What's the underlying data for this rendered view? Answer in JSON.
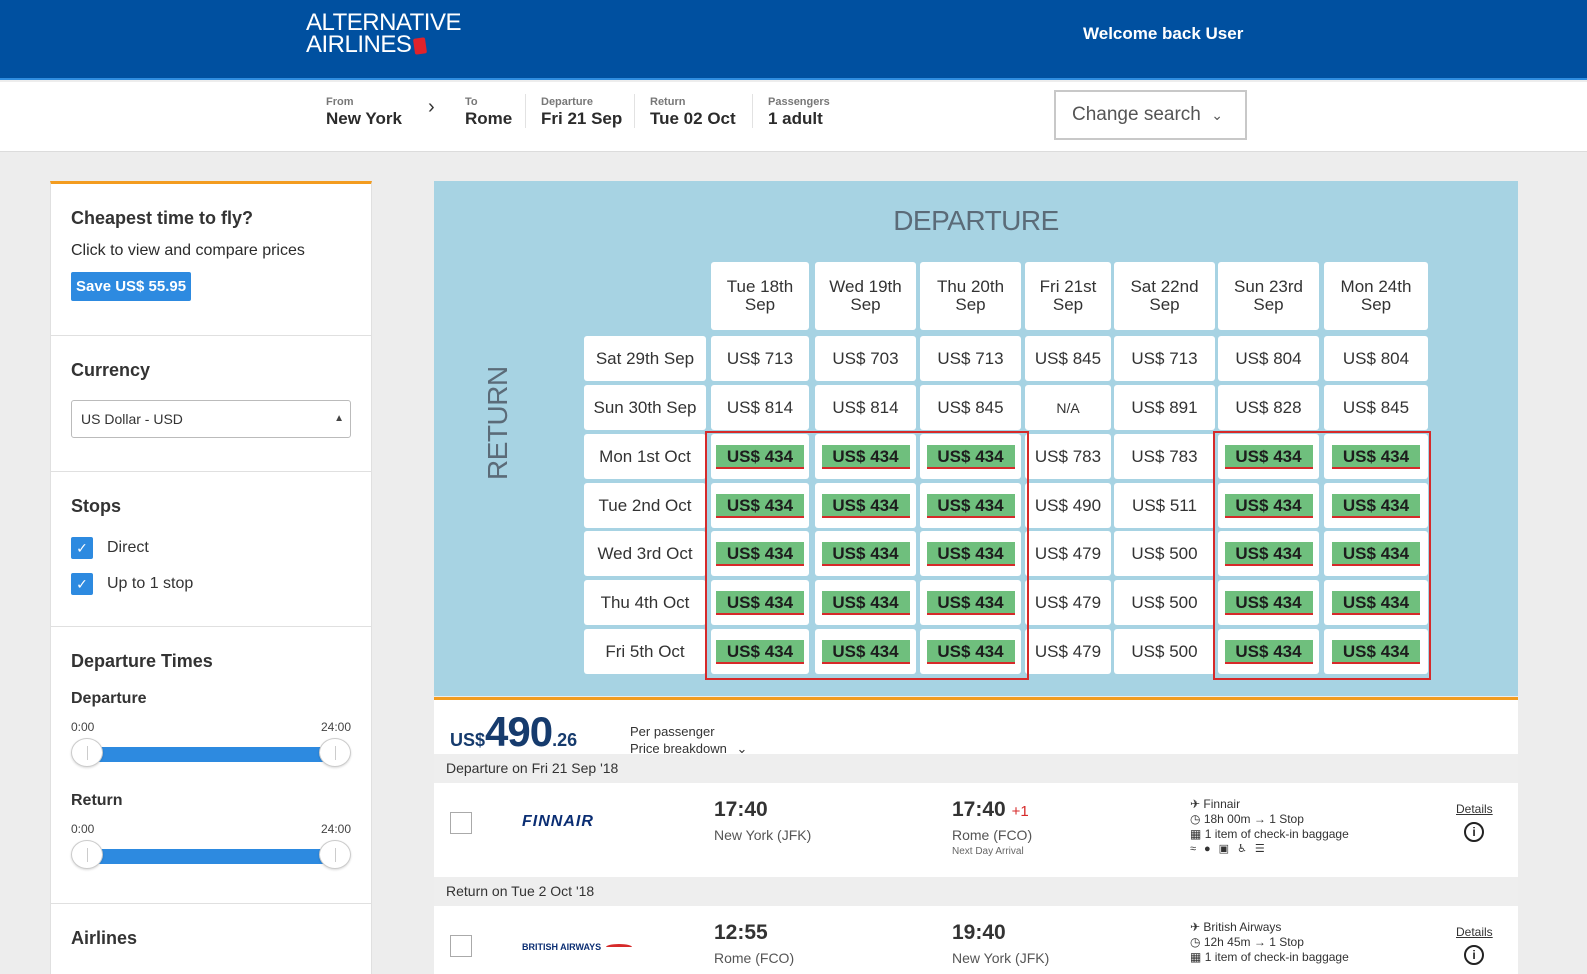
{
  "header": {
    "logo_line1": "ALTERNATIVE",
    "logo_line2": "AIRLINES",
    "welcome": "Welcome back User"
  },
  "search": {
    "from_label": "From",
    "from_value": "New York",
    "to_label": "To",
    "to_value": "Rome",
    "departure_label": "Departure",
    "departure_value": "Fri 21 Sep",
    "return_label": "Return",
    "return_value": "Tue 02 Oct",
    "passengers_label": "Passengers",
    "passengers_value": "1 adult",
    "change_label": "Change search"
  },
  "sidebar": {
    "cheapest_title": "Cheapest time to fly?",
    "cheapest_sub": "Click to view and compare prices",
    "save_label": "Save US$ 55.95",
    "currency_title": "Currency",
    "currency_value": "US Dollar - USD",
    "stops_title": "Stops",
    "stops": [
      {
        "label": "Direct",
        "checked": true
      },
      {
        "label": "Up to 1 stop",
        "checked": true
      }
    ],
    "times_title": "Departure Times",
    "departure_label": "Departure",
    "return_label": "Return",
    "range_min": "0:00",
    "range_max": "24:00",
    "airlines_title": "Airlines"
  },
  "matrix": {
    "title": "DEPARTURE",
    "return_label": "RETURN",
    "columns": [
      "Tue 18th Sep",
      "Wed 19th Sep",
      "Thu 20th Sep",
      "Fri 21st Sep",
      "Sat 22nd Sep",
      "Sun 23rd Sep",
      "Mon 24th Sep"
    ],
    "rows": [
      {
        "label": "Sat 29th Sep",
        "prices": [
          "US$ 713",
          "US$ 703",
          "US$ 713",
          "US$ 845",
          "US$ 713",
          "US$ 804",
          "US$ 804"
        ]
      },
      {
        "label": "Sun 30th Sep",
        "prices": [
          "US$ 814",
          "US$ 814",
          "US$ 845",
          "N/A",
          "US$ 891",
          "US$ 828",
          "US$ 845"
        ]
      },
      {
        "label": "Mon 1st Oct",
        "prices": [
          "US$ 434",
          "US$ 434",
          "US$ 434",
          "US$ 783",
          "US$ 783",
          "US$ 434",
          "US$ 434"
        ]
      },
      {
        "label": "Tue 2nd Oct",
        "prices": [
          "US$ 434",
          "US$ 434",
          "US$ 434",
          "US$ 490",
          "US$ 511",
          "US$ 434",
          "US$ 434"
        ]
      },
      {
        "label": "Wed 3rd Oct",
        "prices": [
          "US$ 434",
          "US$ 434",
          "US$ 434",
          "US$ 479",
          "US$ 500",
          "US$ 434",
          "US$ 434"
        ]
      },
      {
        "label": "Thu 4th Oct",
        "prices": [
          "US$ 434",
          "US$ 434",
          "US$ 434",
          "US$ 479",
          "US$ 500",
          "US$ 434",
          "US$ 434"
        ]
      },
      {
        "label": "Fri 5th Oct",
        "prices": [
          "US$ 434",
          "US$ 434",
          "US$ 434",
          "US$ 479",
          "US$ 500",
          "US$ 434",
          "US$ 434"
        ]
      }
    ],
    "cheapest_price": "US$ 434"
  },
  "result": {
    "currency": "US$",
    "price_main": "490",
    "price_dec": ".26",
    "per_passenger": "Per passenger",
    "breakdown": "Price breakdown",
    "departure_bar": "Departure on Fri 21 Sep '18",
    "return_bar": "Return on Tue 2 Oct '18",
    "flights": [
      {
        "airline_logo": "FINNAIR",
        "dep_time": "17:40",
        "dep_place": "New York (JFK)",
        "arr_time": "17:40",
        "arr_plus": "+1",
        "arr_place": "Rome (FCO)",
        "next_day": "Next Day Arrival",
        "airline": "Finnair",
        "duration": "18h 00m → 1 Stop",
        "baggage": "1 item of check-in baggage",
        "details": "Details"
      },
      {
        "airline_logo": "BRITISH AIRWAYS",
        "dep_time": "12:55",
        "dep_place": "Rome (FCO)",
        "arr_time": "19:40",
        "arr_plus": "",
        "arr_place": "New York (JFK)",
        "next_day": "",
        "airline": "British Airways",
        "duration": "12h 45m → 1 Stop",
        "baggage": "1 item of check-in baggage",
        "details": "Details"
      }
    ]
  },
  "colors": {
    "brand_blue": "#0050a0",
    "accent_orange": "#f39c1f",
    "cheap_green": "#6fbf7d",
    "highlight_red": "#d62a2a",
    "matrix_bg": "#a7d3e3"
  }
}
